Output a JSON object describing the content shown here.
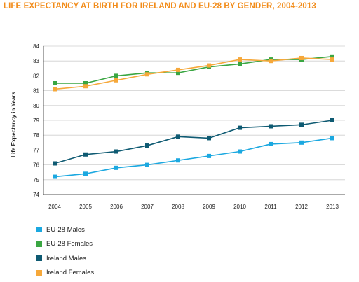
{
  "chart_data": {
    "type": "line",
    "title": "LIFE EXPECTANCY AT BIRTH FOR IRELAND AND EU-28 BY GENDER, 2004-2013",
    "ylabel": "Life Expectancy in Years",
    "xlabel": "",
    "x": [
      "2004",
      "2005",
      "2006",
      "2007",
      "2008",
      "2009",
      "2010",
      "2011",
      "2012",
      "2013"
    ],
    "ylim": [
      74,
      84
    ],
    "yticks": [
      "74",
      "75",
      "76",
      "77",
      "78",
      "79",
      "80",
      "81",
      "82",
      "83",
      "84"
    ],
    "grid": true,
    "legend_position": "bottom-left",
    "series": [
      {
        "name": "EU-28 Males",
        "color": "#1ba8e0",
        "values": [
          75.2,
          75.4,
          75.8,
          76.0,
          76.3,
          76.6,
          76.9,
          77.4,
          77.5,
          77.8
        ]
      },
      {
        "name": "EU-28 Females",
        "color": "#3aa642",
        "values": [
          81.5,
          81.5,
          82.0,
          82.2,
          82.2,
          82.6,
          82.8,
          83.1,
          83.1,
          83.3
        ]
      },
      {
        "name": "Ireland Males",
        "color": "#0e5a72",
        "values": [
          76.1,
          76.7,
          76.9,
          77.3,
          77.9,
          77.8,
          78.5,
          78.6,
          78.7,
          79.0
        ]
      },
      {
        "name": "Ireland Females",
        "color": "#f6a83a",
        "values": [
          81.1,
          81.3,
          81.7,
          82.1,
          82.4,
          82.7,
          83.1,
          83.0,
          83.2,
          83.1
        ]
      }
    ]
  }
}
